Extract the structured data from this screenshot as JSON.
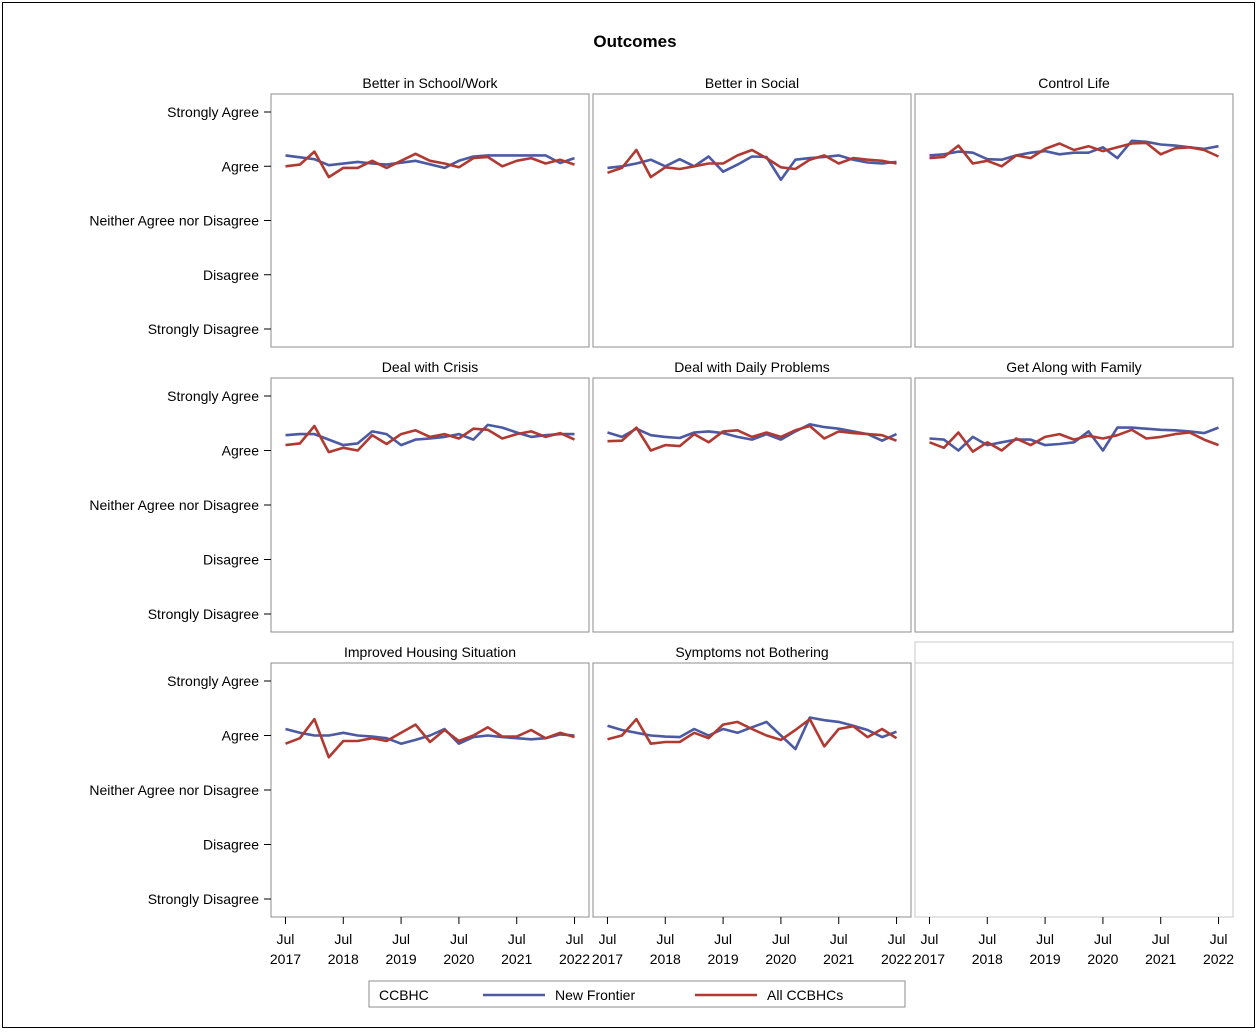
{
  "chart_data": {
    "type": "line",
    "title": "Outcomes",
    "y_scale": {
      "categories": [
        "Strongly Disagree",
        "Disagree",
        "Neither Agree nor Disagree",
        "Agree",
        "Strongly Agree"
      ],
      "ylim": [
        1,
        5
      ]
    },
    "x_axis": {
      "ticks": [
        {
          "month": "Jul",
          "year": "2017"
        },
        {
          "month": "Jul",
          "year": "2018"
        },
        {
          "month": "Jul",
          "year": "2019"
        },
        {
          "month": "Jul",
          "year": "2020"
        },
        {
          "month": "Jul",
          "year": "2021"
        },
        {
          "month": "Jul",
          "year": "2022"
        }
      ],
      "xlim": [
        "2017-04",
        "2022-10"
      ]
    },
    "legend": {
      "title": "CCBHC",
      "position": "bottom",
      "entries": [
        {
          "name": "New Frontier",
          "color": "#4c5aa3"
        },
        {
          "name": "All CCBHCs",
          "color": "#b03a32"
        }
      ]
    },
    "x_dates": [
      "2017-07",
      "2017-10",
      "2018-01",
      "2018-04",
      "2018-07",
      "2018-10",
      "2019-01",
      "2019-04",
      "2019-07",
      "2019-10",
      "2020-01",
      "2020-04",
      "2020-07",
      "2020-10",
      "2021-01",
      "2021-04",
      "2021-07",
      "2021-10",
      "2022-01",
      "2022-04",
      "2022-07"
    ],
    "panels": [
      {
        "title": "Better in School/Work",
        "series": [
          {
            "name": "New Frontier",
            "x": [
              "2017-07",
              "2018-01",
              "2018-04",
              "2018-10",
              "2019-01",
              "2019-04",
              "2019-10",
              "2020-04",
              "2020-07",
              "2020-10",
              "2021-01",
              "2022-01",
              "2022-04",
              "2022-07"
            ],
            "y": [
              4.2,
              4.13,
              4.02,
              4.08,
              4.05,
              4.03,
              4.1,
              3.97,
              4.1,
              4.18,
              4.2,
              4.2,
              4.06,
              4.15
            ]
          },
          {
            "name": "All CCBHCs",
            "x": [
              "2017-07",
              "2017-10",
              "2018-01",
              "2018-04",
              "2018-07",
              "2018-10",
              "2019-01",
              "2019-04",
              "2019-07",
              "2019-10",
              "2020-01",
              "2020-04",
              "2020-07",
              "2020-10",
              "2021-01",
              "2021-04",
              "2021-07",
              "2021-10",
              "2022-01",
              "2022-04",
              "2022-07"
            ],
            "y": [
              4.0,
              4.03,
              4.27,
              3.8,
              3.97,
              3.97,
              4.1,
              3.97,
              4.1,
              4.23,
              4.1,
              4.05,
              3.98,
              4.15,
              4.17,
              4.0,
              4.1,
              4.15,
              4.05,
              4.12,
              4.03
            ]
          }
        ]
      },
      {
        "title": "Better in Social",
        "series": [
          {
            "name": "New Frontier",
            "x": [
              "2017-07",
              "2017-10",
              "2018-01",
              "2018-04",
              "2018-07",
              "2018-10",
              "2019-01",
              "2019-04",
              "2019-07",
              "2019-10",
              "2020-01",
              "2020-04",
              "2020-07",
              "2020-10",
              "2021-01",
              "2021-04",
              "2021-07",
              "2021-10",
              "2022-01",
              "2022-04",
              "2022-07"
            ],
            "y": [
              3.97,
              4.0,
              4.05,
              4.12,
              4.0,
              4.13,
              4.0,
              4.18,
              3.9,
              4.03,
              4.18,
              4.17,
              3.75,
              4.12,
              4.15,
              4.17,
              4.2,
              4.12,
              4.07,
              4.05,
              4.08
            ]
          },
          {
            "name": "All CCBHCs",
            "x": [
              "2017-07",
              "2017-10",
              "2018-01",
              "2018-04",
              "2018-07",
              "2018-10",
              "2019-01",
              "2019-04",
              "2019-07",
              "2019-10",
              "2020-01",
              "2020-04",
              "2020-07",
              "2020-10",
              "2021-01",
              "2021-04",
              "2021-07",
              "2021-10",
              "2022-01",
              "2022-04",
              "2022-07"
            ],
            "y": [
              3.88,
              3.97,
              4.3,
              3.8,
              3.98,
              3.95,
              4.0,
              4.05,
              4.05,
              4.2,
              4.3,
              4.15,
              3.98,
              3.95,
              4.12,
              4.2,
              4.05,
              4.15,
              4.12,
              4.1,
              4.05
            ]
          }
        ]
      },
      {
        "title": "Control Life",
        "series": [
          {
            "name": "New Frontier",
            "x": [
              "2017-07",
              "2017-10",
              "2018-01",
              "2018-04",
              "2018-07",
              "2018-10",
              "2019-01",
              "2019-04",
              "2019-07",
              "2019-10",
              "2020-01",
              "2020-04",
              "2020-07",
              "2020-10",
              "2021-01",
              "2021-04",
              "2021-07",
              "2021-10",
              "2022-01",
              "2022-04",
              "2022-07"
            ],
            "y": [
              4.2,
              4.22,
              4.27,
              4.25,
              4.13,
              4.12,
              4.2,
              4.25,
              4.28,
              4.22,
              4.25,
              4.25,
              4.35,
              4.15,
              4.47,
              4.45,
              4.4,
              4.38,
              4.35,
              4.32,
              4.37
            ]
          },
          {
            "name": "All CCBHCs",
            "x": [
              "2017-07",
              "2017-10",
              "2018-01",
              "2018-04",
              "2018-07",
              "2018-10",
              "2019-01",
              "2019-04",
              "2019-07",
              "2019-10",
              "2020-01",
              "2020-04",
              "2020-07",
              "2020-10",
              "2021-01",
              "2021-04",
              "2021-07",
              "2021-10",
              "2022-01",
              "2022-04",
              "2022-07"
            ],
            "y": [
              4.15,
              4.17,
              4.38,
              4.05,
              4.1,
              4.0,
              4.2,
              4.15,
              4.32,
              4.42,
              4.3,
              4.37,
              4.28,
              4.35,
              4.42,
              4.43,
              4.22,
              4.33,
              4.35,
              4.3,
              4.18
            ]
          }
        ]
      },
      {
        "title": "Deal with Crisis",
        "series": [
          {
            "name": "New Frontier",
            "x": [
              "2017-07",
              "2017-10",
              "2018-01",
              "2018-04",
              "2018-07",
              "2018-10",
              "2019-01",
              "2019-04",
              "2019-07",
              "2019-10",
              "2020-01",
              "2020-04",
              "2020-07",
              "2020-10",
              "2021-01",
              "2021-04",
              "2021-07",
              "2021-10",
              "2022-01",
              "2022-04",
              "2022-07"
            ],
            "y": [
              4.28,
              4.3,
              4.3,
              4.2,
              4.1,
              4.13,
              4.35,
              4.3,
              4.1,
              4.2,
              4.22,
              4.25,
              4.3,
              4.2,
              4.47,
              4.42,
              4.33,
              4.25,
              4.28,
              4.3,
              4.3
            ]
          },
          {
            "name": "All CCBHCs",
            "x": [
              "2017-07",
              "2017-10",
              "2018-01",
              "2018-04",
              "2018-07",
              "2018-10",
              "2019-01",
              "2019-04",
              "2019-07",
              "2019-10",
              "2020-01",
              "2020-04",
              "2020-07",
              "2020-10",
              "2021-01",
              "2021-04",
              "2021-07",
              "2021-10",
              "2022-01",
              "2022-04",
              "2022-07"
            ],
            "y": [
              4.1,
              4.13,
              4.45,
              3.97,
              4.05,
              4.0,
              4.28,
              4.12,
              4.3,
              4.37,
              4.25,
              4.3,
              4.22,
              4.4,
              4.38,
              4.22,
              4.3,
              4.35,
              4.25,
              4.32,
              4.2
            ]
          }
        ]
      },
      {
        "title": "Deal with Daily Problems",
        "series": [
          {
            "name": "New Frontier",
            "x": [
              "2017-07",
              "2017-10",
              "2018-01",
              "2018-04",
              "2018-07",
              "2018-10",
              "2019-01",
              "2019-04",
              "2019-07",
              "2019-10",
              "2020-01",
              "2020-04",
              "2020-07",
              "2020-10",
              "2021-01",
              "2021-04",
              "2021-07",
              "2021-10",
              "2022-01",
              "2022-04",
              "2022-07"
            ],
            "y": [
              4.33,
              4.25,
              4.4,
              4.28,
              4.25,
              4.23,
              4.33,
              4.35,
              4.32,
              4.25,
              4.2,
              4.3,
              4.2,
              4.35,
              4.48,
              4.43,
              4.4,
              4.35,
              4.3,
              4.18,
              4.3
            ]
          },
          {
            "name": "All CCBHCs",
            "x": [
              "2017-07",
              "2017-10",
              "2018-01",
              "2018-04",
              "2018-07",
              "2018-10",
              "2019-01",
              "2019-04",
              "2019-07",
              "2019-10",
              "2020-01",
              "2020-04",
              "2020-07",
              "2020-10",
              "2021-01",
              "2021-04",
              "2021-07",
              "2021-10",
              "2022-01",
              "2022-04",
              "2022-07"
            ],
            "y": [
              4.17,
              4.18,
              4.42,
              4.0,
              4.1,
              4.08,
              4.3,
              4.15,
              4.35,
              4.37,
              4.25,
              4.33,
              4.25,
              4.37,
              4.45,
              4.22,
              4.35,
              4.32,
              4.3,
              4.28,
              4.18
            ]
          }
        ]
      },
      {
        "title": "Get Along with Family",
        "series": [
          {
            "name": "New Frontier",
            "x": [
              "2017-07",
              "2017-10",
              "2018-01",
              "2018-04",
              "2018-07",
              "2018-10",
              "2019-01",
              "2019-04",
              "2019-07",
              "2019-10",
              "2020-01",
              "2020-04",
              "2020-07",
              "2020-10",
              "2021-01",
              "2021-04",
              "2021-07",
              "2021-10",
              "2022-01",
              "2022-04",
              "2022-07"
            ],
            "y": [
              4.22,
              4.2,
              4.0,
              4.25,
              4.1,
              4.15,
              4.2,
              4.2,
              4.1,
              4.12,
              4.15,
              4.35,
              4.0,
              4.42,
              4.42,
              4.4,
              4.38,
              4.37,
              4.35,
              4.32,
              4.42
            ]
          },
          {
            "name": "All CCBHCs",
            "x": [
              "2017-07",
              "2017-10",
              "2018-01",
              "2018-04",
              "2018-07",
              "2018-10",
              "2019-01",
              "2019-04",
              "2019-07",
              "2019-10",
              "2020-01",
              "2020-04",
              "2020-07",
              "2020-10",
              "2021-01",
              "2021-04",
              "2021-07",
              "2021-10",
              "2022-01",
              "2022-04",
              "2022-07"
            ],
            "y": [
              4.15,
              4.05,
              4.33,
              3.98,
              4.15,
              4.0,
              4.22,
              4.1,
              4.25,
              4.3,
              4.2,
              4.27,
              4.22,
              4.28,
              4.38,
              4.22,
              4.25,
              4.3,
              4.33,
              4.2,
              4.1
            ]
          }
        ]
      },
      {
        "title": "Improved Housing Situation",
        "series": [
          {
            "name": "New Frontier",
            "x": [
              "2017-07",
              "2017-10",
              "2018-01",
              "2018-04",
              "2018-07",
              "2018-10",
              "2019-01",
              "2019-04",
              "2019-07",
              "2019-10",
              "2020-01",
              "2020-04",
              "2020-07",
              "2020-10",
              "2021-01",
              "2021-04",
              "2021-07",
              "2021-10",
              "2022-01",
              "2022-04",
              "2022-07"
            ],
            "y": [
              4.12,
              4.05,
              4.0,
              4.0,
              4.05,
              4.0,
              3.98,
              3.95,
              3.85,
              3.92,
              4.0,
              4.12,
              3.85,
              3.97,
              4.0,
              3.97,
              3.95,
              3.93,
              3.95,
              4.02,
              4.0
            ]
          },
          {
            "name": "All CCBHCs",
            "x": [
              "2017-07",
              "2017-10",
              "2018-01",
              "2018-04",
              "2018-07",
              "2018-10",
              "2019-01",
              "2019-04",
              "2019-07",
              "2019-10",
              "2020-01",
              "2020-04",
              "2020-07",
              "2020-10",
              "2021-01",
              "2021-04",
              "2021-07",
              "2021-10",
              "2022-01",
              "2022-04",
              "2022-07"
            ],
            "y": [
              3.85,
              3.95,
              4.3,
              3.6,
              3.9,
              3.9,
              3.95,
              3.9,
              4.05,
              4.2,
              3.88,
              4.1,
              3.9,
              4.0,
              4.15,
              3.98,
              3.98,
              4.1,
              3.95,
              4.05,
              3.97
            ]
          }
        ]
      },
      {
        "title": "Symptoms not Bothering",
        "series": [
          {
            "name": "New Frontier",
            "x": [
              "2017-07",
              "2017-10",
              "2018-01",
              "2018-04",
              "2018-07",
              "2018-10",
              "2019-01",
              "2019-04",
              "2019-07",
              "2019-10",
              "2020-01",
              "2020-04",
              "2020-07",
              "2020-10",
              "2021-01",
              "2021-04",
              "2021-07",
              "2021-10",
              "2022-01",
              "2022-04",
              "2022-07"
            ],
            "y": [
              4.18,
              4.1,
              4.05,
              4.0,
              3.98,
              3.97,
              4.12,
              4.0,
              4.12,
              4.05,
              4.15,
              4.25,
              4.0,
              3.75,
              4.33,
              4.28,
              4.25,
              4.18,
              4.1,
              3.97,
              4.07
            ]
          },
          {
            "name": "All CCBHCs",
            "x": [
              "2017-07",
              "2017-10",
              "2018-01",
              "2018-04",
              "2018-07",
              "2018-10",
              "2019-01",
              "2019-04",
              "2019-07",
              "2019-10",
              "2020-01",
              "2020-04",
              "2020-07",
              "2020-10",
              "2021-01",
              "2021-04",
              "2021-07",
              "2021-10",
              "2022-01",
              "2022-04",
              "2022-07"
            ],
            "y": [
              3.93,
              4.0,
              4.3,
              3.85,
              3.88,
              3.88,
              4.05,
              3.95,
              4.2,
              4.25,
              4.12,
              4.0,
              3.92,
              4.1,
              4.3,
              3.8,
              4.12,
              4.17,
              3.97,
              4.12,
              3.95
            ]
          }
        ]
      }
    ]
  }
}
